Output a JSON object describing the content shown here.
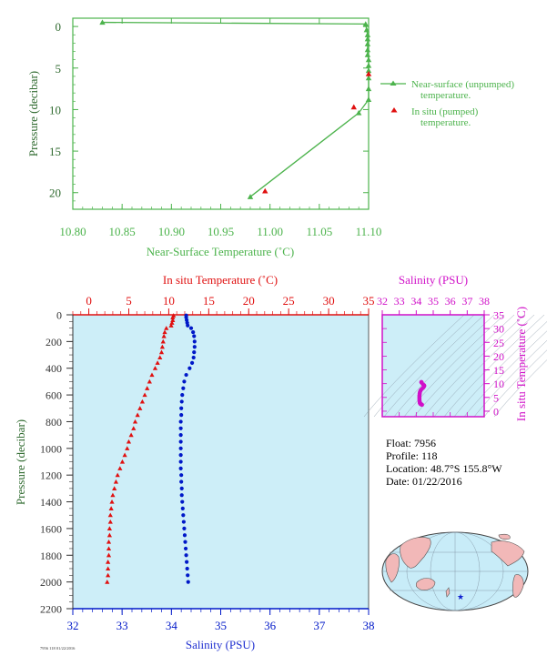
{
  "colors": {
    "green": "#4cb34c",
    "axis_dark": "#333333",
    "red": "#e01010",
    "blue": "#0018c8",
    "magenta": "#d010c8",
    "plot_bg": "#cdeef8",
    "tick_blue": "#2030d0",
    "contour": "#8a9aa8",
    "land": "#f2b8b8",
    "ocean": "#c8ecf8",
    "star": "#1020d0"
  },
  "info": {
    "float": "Float:  7956",
    "profile": "Profile:  118",
    "location": "Location:  48.7°S  155.8°W",
    "date": "Date:  01/22/2016"
  },
  "footer_id": "7956 118 01/22/2016",
  "chart_data": [
    {
      "type": "line",
      "xlabel": "Near-Surface Temperature (˚C)",
      "ylabel": "Pressure (decibar)",
      "xlim": [
        10.8,
        11.1
      ],
      "ylim": [
        22,
        -1
      ],
      "xticks": [
        "10.80",
        "10.85",
        "10.90",
        "10.95",
        "11.00",
        "11.05",
        "11.10"
      ],
      "yticks": [
        "0",
        "5",
        "10",
        "15",
        "20"
      ],
      "legend_placement": "right",
      "series": [
        {
          "name": "Near-surface (unpumped) temperature.",
          "marker": "triangle-line",
          "x": [
            10.83,
            11.097,
            11.098,
            11.099,
            11.099,
            11.099,
            11.099,
            11.099,
            11.1,
            11.1,
            11.1,
            11.1,
            11.1,
            11.1,
            11.09,
            10.98
          ],
          "y": [
            -0.5,
            -0.3,
            0.4,
            1.0,
            1.5,
            2.1,
            2.8,
            3.4,
            4.0,
            4.7,
            5.3,
            6.2,
            7.5,
            8.8,
            10.4,
            20.5
          ]
        },
        {
          "name": "In situ (pumped) temperature.",
          "marker": "triangle",
          "x": [
            11.1,
            11.085,
            10.995
          ],
          "y": [
            5.7,
            9.7,
            19.8
          ]
        }
      ]
    },
    {
      "type": "scatter",
      "x_top_label": "In situ Temperature (˚C)",
      "x_bottom_label": "Salinity (PSU)",
      "ylabel": "Pressure (decibar)",
      "top_xlim": [
        -2,
        35
      ],
      "bottom_xlim": [
        32,
        38
      ],
      "ylim": [
        2200,
        0
      ],
      "top_ticks": [
        "0",
        "5",
        "10",
        "15",
        "20",
        "25",
        "30",
        "35"
      ],
      "bottom_ticks": [
        "32",
        "33",
        "34",
        "35",
        "36",
        "37",
        "38"
      ],
      "yticks": [
        "0",
        "200",
        "400",
        "600",
        "800",
        "1000",
        "1200",
        "1400",
        "1600",
        "1800",
        "2000",
        "2200"
      ],
      "temperature": {
        "p": [
          5,
          20,
          40,
          60,
          80,
          100,
          130,
          160,
          200,
          240,
          280,
          320,
          360,
          400,
          450,
          500,
          550,
          600,
          650,
          700,
          750,
          800,
          850,
          900,
          950,
          1000,
          1050,
          1100,
          1150,
          1200,
          1250,
          1300,
          1350,
          1400,
          1450,
          1500,
          1550,
          1600,
          1650,
          1700,
          1750,
          1800,
          1850,
          1900,
          1950,
          2000
        ],
        "t": [
          10.6,
          10.5,
          10.5,
          10.4,
          10.3,
          9.7,
          9.5,
          9.4,
          9.3,
          9.2,
          9.1,
          8.9,
          8.6,
          8.3,
          7.9,
          7.6,
          7.3,
          7.0,
          6.7,
          6.4,
          6.1,
          5.8,
          5.6,
          5.3,
          5.0,
          4.8,
          4.5,
          4.2,
          3.9,
          3.6,
          3.4,
          3.2,
          3.0,
          2.9,
          2.8,
          2.7,
          2.7,
          2.6,
          2.6,
          2.5,
          2.5,
          2.5,
          2.4,
          2.4,
          2.4,
          2.3
        ]
      },
      "salinity": {
        "p": [
          5,
          20,
          40,
          60,
          80,
          100,
          130,
          160,
          200,
          240,
          280,
          320,
          360,
          400,
          450,
          500,
          550,
          600,
          650,
          700,
          750,
          800,
          850,
          900,
          950,
          1000,
          1050,
          1100,
          1150,
          1200,
          1250,
          1300,
          1350,
          1400,
          1450,
          1500,
          1550,
          1600,
          1650,
          1700,
          1750,
          1800,
          1850,
          1900,
          1950,
          2000
        ],
        "s": [
          34.3,
          34.3,
          34.31,
          34.32,
          34.33,
          34.4,
          34.44,
          34.46,
          34.47,
          34.47,
          34.46,
          34.45,
          34.42,
          34.37,
          34.3,
          34.26,
          34.24,
          34.22,
          34.21,
          34.2,
          34.2,
          34.19,
          34.19,
          34.19,
          34.19,
          34.19,
          34.19,
          34.19,
          34.19,
          34.2,
          34.2,
          34.21,
          34.21,
          34.22,
          34.23,
          34.24,
          34.25,
          34.26,
          34.27,
          34.28,
          34.29,
          34.3,
          34.31,
          34.32,
          34.33,
          34.34
        ]
      }
    },
    {
      "type": "scatter",
      "xlabel": "Salinity (PSU)",
      "ylabel": "In situ Temperature (˚C)",
      "xlim": [
        32,
        38
      ],
      "ylim": [
        -2,
        35
      ],
      "xticks": [
        "32",
        "33",
        "34",
        "35",
        "36",
        "37",
        "38"
      ],
      "yticks": [
        "0",
        "5",
        "10",
        "15",
        "20",
        "25",
        "30",
        "35"
      ]
    }
  ]
}
